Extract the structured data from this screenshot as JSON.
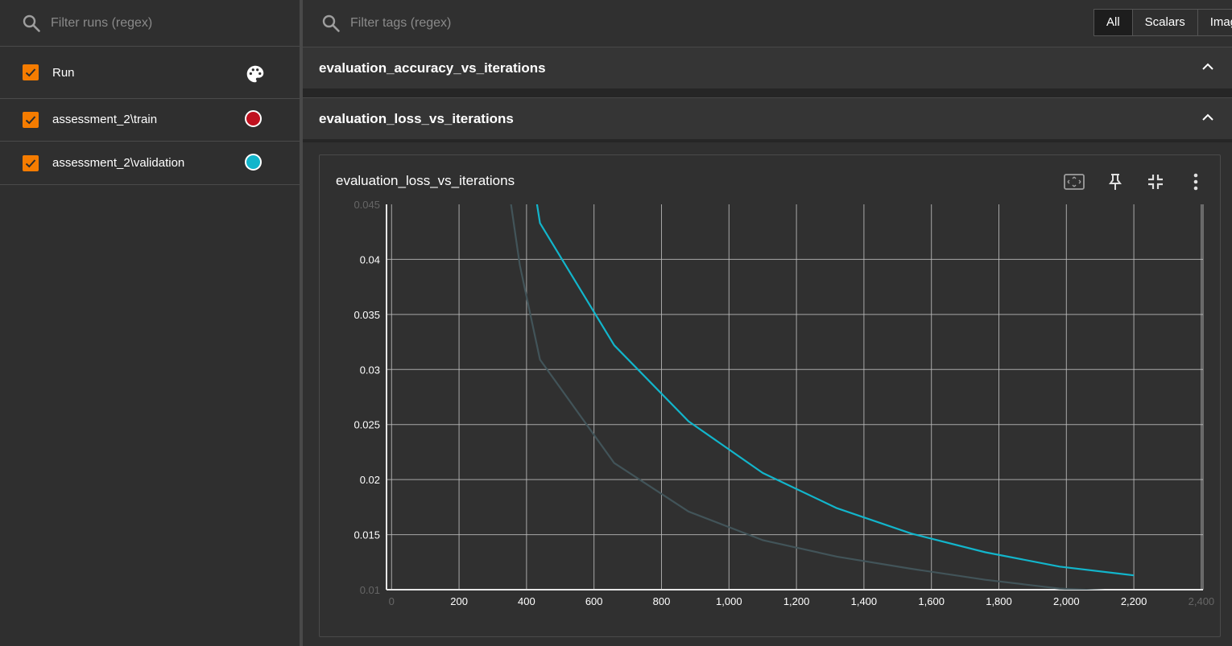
{
  "sidebar": {
    "search_placeholder": "Filter runs (regex)",
    "header_label": "Run",
    "runs": [
      {
        "label": "assessment_2\\train",
        "color": "#c0111f"
      },
      {
        "label": "assessment_2\\validation",
        "color": "#12b5cb"
      }
    ]
  },
  "main": {
    "search_placeholder": "Filter tags (regex)",
    "tabs": [
      "All",
      "Scalars",
      "Images"
    ],
    "groups": [
      {
        "title": "evaluation_accuracy_vs_iterations"
      },
      {
        "title": "evaluation_loss_vs_iterations"
      }
    ],
    "card": {
      "title": "evaluation_loss_vs_iterations"
    }
  },
  "chart_data": {
    "type": "line",
    "title": "evaluation_loss_vs_iterations",
    "xlabel": "",
    "ylabel": "",
    "xlim": [
      -15,
      2405
    ],
    "ylim": [
      0.01,
      0.045
    ],
    "x_ticks": [
      0,
      200,
      400,
      600,
      800,
      1000,
      1200,
      1400,
      1600,
      1800,
      2000,
      2200,
      2400
    ],
    "x_tick_labels": [
      "0",
      "200",
      "400",
      "600",
      "800",
      "1,000",
      "1,200",
      "1,400",
      "1,600",
      "1,800",
      "2,000",
      "2,200",
      "2,400"
    ],
    "y_ticks": [
      0.01,
      0.015,
      0.02,
      0.025,
      0.03,
      0.035,
      0.04,
      0.045
    ],
    "y_tick_labels": [
      "0.01",
      "0.015",
      "0.02",
      "0.025",
      "0.03",
      "0.035",
      "0.04",
      "0.045"
    ],
    "grid": true,
    "series": [
      {
        "color": "#12b5cb",
        "x": [
          400,
          440,
          660,
          880,
          1100,
          1320,
          1540,
          1760,
          1980,
          2200
        ],
        "y": [
          0.051,
          0.0433,
          0.0322,
          0.0253,
          0.0206,
          0.0174,
          0.0151,
          0.0134,
          0.0121,
          0.0113
        ]
      },
      {
        "color": "#425459",
        "x": [
          340,
          380,
          440,
          660,
          880,
          1100,
          1320,
          1540,
          1760,
          1980,
          2200
        ],
        "y": [
          0.048,
          0.0395,
          0.0309,
          0.0215,
          0.0171,
          0.0145,
          0.013,
          0.0119,
          0.0109,
          0.0101,
          0.0098
        ]
      }
    ]
  }
}
